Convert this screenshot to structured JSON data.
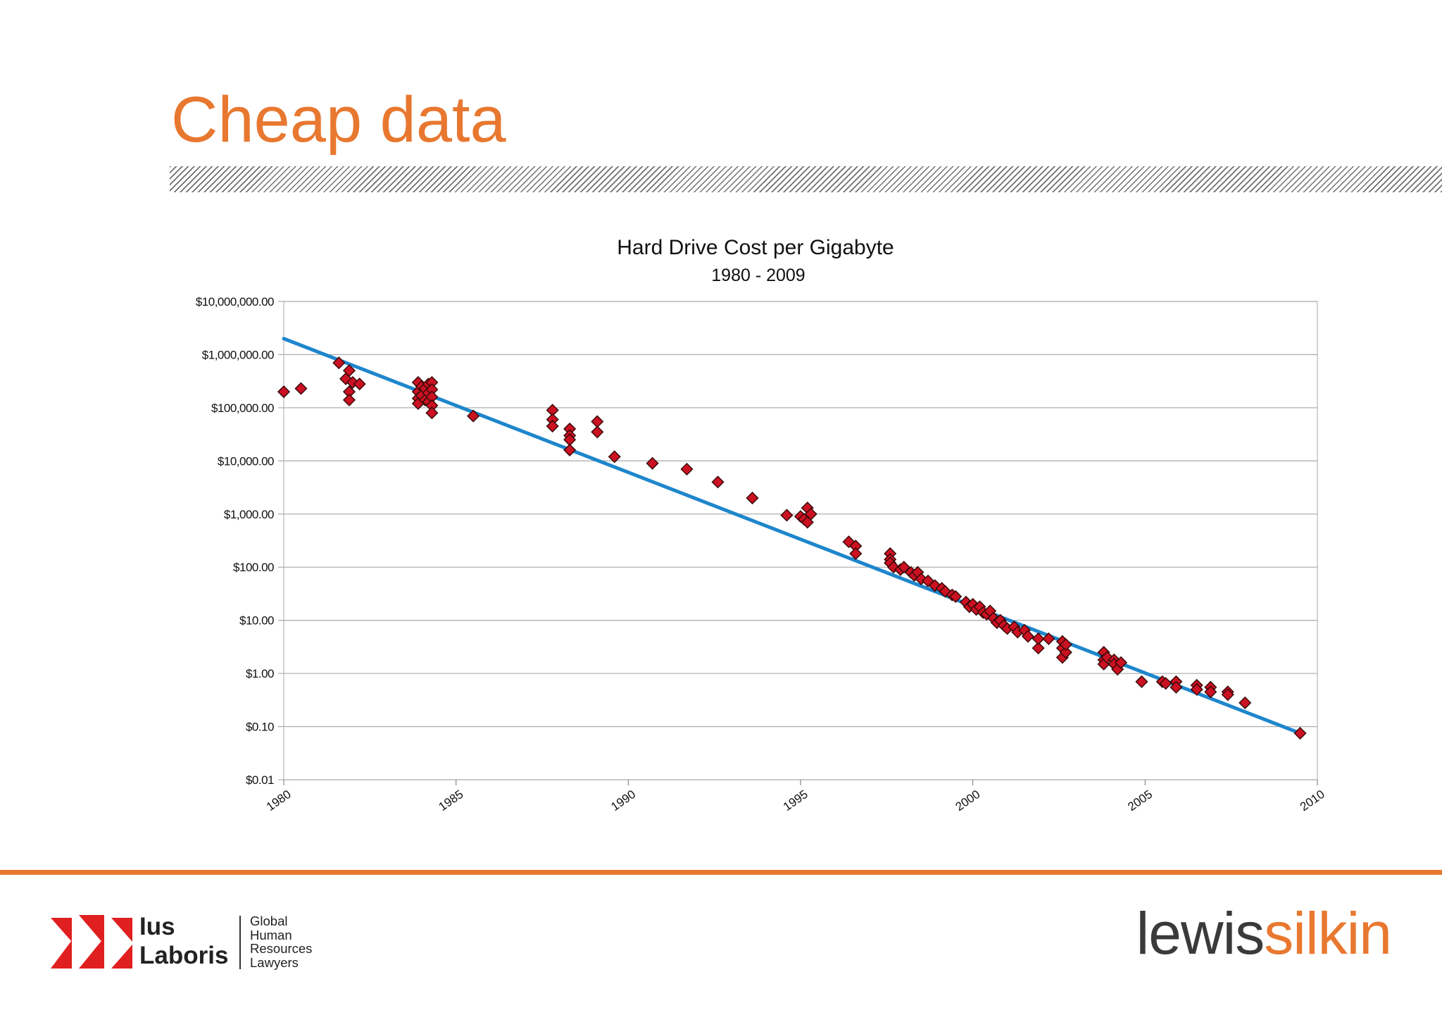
{
  "slide": {
    "title": "Cheap data",
    "colors": {
      "accent": "#e87830",
      "hatch": "#6f6f6f"
    }
  },
  "chart_data": {
    "type": "scatter",
    "title": "Hard Drive Cost per Gigabyte",
    "subtitle": "1980 - 2009",
    "xlabel": "",
    "ylabel": "",
    "x_scale": "linear",
    "y_scale": "log",
    "xlim": [
      1980,
      2010
    ],
    "ylim": [
      0.01,
      10000000
    ],
    "x_ticks": [
      1980,
      1985,
      1990,
      1995,
      2000,
      2005,
      2010
    ],
    "x_tick_labels": [
      "1980",
      "1985",
      "1990",
      "1995",
      "2000",
      "2005",
      "2010"
    ],
    "y_ticks": [
      10000000,
      1000000,
      100000,
      10000,
      1000,
      100,
      10,
      1,
      0.1,
      0.01
    ],
    "y_tick_labels": [
      "$10,000,000.00",
      "$1,000,000.00",
      "$100,000.00",
      "$10,000.00",
      "$1,000.00",
      "$100.00",
      "$10.00",
      "$1.00",
      "$0.10",
      "$0.01"
    ],
    "grid": {
      "horizontal": true,
      "vertical": false
    },
    "legend": "none",
    "series": [
      {
        "marker": "diamond",
        "color": "#cc1122",
        "edge_color": "#3a0a0a",
        "points": [
          [
            1980.0,
            200000
          ],
          [
            1980.5,
            230000
          ],
          [
            1981.6,
            700000
          ],
          [
            1981.8,
            350000
          ],
          [
            1981.9,
            500000
          ],
          [
            1981.9,
            200000
          ],
          [
            1981.9,
            140000
          ],
          [
            1982.0,
            300000
          ],
          [
            1982.2,
            280000
          ],
          [
            1983.9,
            300000
          ],
          [
            1983.9,
            200000
          ],
          [
            1983.9,
            150000
          ],
          [
            1983.9,
            120000
          ],
          [
            1984.0,
            250000
          ],
          [
            1984.0,
            170000
          ],
          [
            1984.1,
            230000
          ],
          [
            1984.1,
            140000
          ],
          [
            1984.2,
            280000
          ],
          [
            1984.2,
            190000
          ],
          [
            1984.2,
            130000
          ],
          [
            1984.3,
            300000
          ],
          [
            1984.3,
            220000
          ],
          [
            1984.3,
            160000
          ],
          [
            1984.3,
            110000
          ],
          [
            1984.3,
            80000
          ],
          [
            1985.5,
            70000
          ],
          [
            1987.8,
            90000
          ],
          [
            1987.8,
            60000
          ],
          [
            1987.8,
            45000
          ],
          [
            1988.3,
            40000
          ],
          [
            1988.3,
            30000
          ],
          [
            1988.3,
            25000
          ],
          [
            1988.3,
            16000
          ],
          [
            1989.1,
            55000
          ],
          [
            1989.1,
            35000
          ],
          [
            1989.6,
            12000
          ],
          [
            1990.7,
            9000
          ],
          [
            1991.7,
            7000
          ],
          [
            1992.6,
            4000
          ],
          [
            1993.6,
            2000
          ],
          [
            1994.6,
            950
          ],
          [
            1995.0,
            900
          ],
          [
            1995.1,
            800
          ],
          [
            1995.2,
            1300
          ],
          [
            1995.2,
            700
          ],
          [
            1995.3,
            1000
          ],
          [
            1996.4,
            300
          ],
          [
            1996.6,
            250
          ],
          [
            1996.6,
            180
          ],
          [
            1997.6,
            180
          ],
          [
            1997.6,
            140
          ],
          [
            1997.6,
            120
          ],
          [
            1997.7,
            100
          ],
          [
            1997.9,
            90
          ],
          [
            1998.0,
            100
          ],
          [
            1998.2,
            80
          ],
          [
            1998.3,
            70
          ],
          [
            1998.4,
            80
          ],
          [
            1998.5,
            60
          ],
          [
            1998.7,
            55
          ],
          [
            1998.9,
            45
          ],
          [
            1999.1,
            40
          ],
          [
            1999.2,
            35
          ],
          [
            1999.4,
            30
          ],
          [
            1999.5,
            28
          ],
          [
            1999.8,
            22
          ],
          [
            1999.9,
            18
          ],
          [
            2000.0,
            20
          ],
          [
            2000.1,
            16
          ],
          [
            2000.2,
            18
          ],
          [
            2000.3,
            14
          ],
          [
            2000.4,
            13
          ],
          [
            2000.5,
            15
          ],
          [
            2000.6,
            11
          ],
          [
            2000.7,
            9
          ],
          [
            2000.8,
            10
          ],
          [
            2000.9,
            8
          ],
          [
            2001.0,
            7
          ],
          [
            2001.2,
            7.5
          ],
          [
            2001.3,
            6
          ],
          [
            2001.5,
            6.5
          ],
          [
            2001.6,
            5
          ],
          [
            2001.9,
            3
          ],
          [
            2001.9,
            4.5
          ],
          [
            2002.2,
            4.5
          ],
          [
            2002.6,
            4
          ],
          [
            2002.6,
            3
          ],
          [
            2002.6,
            2
          ],
          [
            2002.7,
            2.5
          ],
          [
            2002.7,
            3.5
          ],
          [
            2003.8,
            2.5
          ],
          [
            2003.8,
            1.8
          ],
          [
            2003.8,
            1.5
          ],
          [
            2003.9,
            2
          ],
          [
            2004.1,
            1.8
          ],
          [
            2004.1,
            1.5
          ],
          [
            2004.2,
            1.2
          ],
          [
            2004.3,
            1.6
          ],
          [
            2004.9,
            0.7
          ],
          [
            2005.5,
            0.7
          ],
          [
            2005.6,
            0.65
          ],
          [
            2005.9,
            0.7
          ],
          [
            2005.9,
            0.55
          ],
          [
            2006.5,
            0.6
          ],
          [
            2006.5,
            0.5
          ],
          [
            2006.9,
            0.55
          ],
          [
            2006.9,
            0.45
          ],
          [
            2007.4,
            0.45
          ],
          [
            2007.4,
            0.4
          ],
          [
            2007.9,
            0.28
          ],
          [
            2009.5,
            0.075
          ]
        ]
      },
      {
        "name": "",
        "type": "trendline",
        "color": "#1e86cc",
        "points": [
          [
            1980.0,
            2000000
          ],
          [
            2009.5,
            0.075
          ]
        ]
      }
    ]
  },
  "footer": {
    "ius_laboris": {
      "name_line1": "Ius",
      "name_line2": "Laboris",
      "tagline": [
        "Global",
        "Human",
        "Resources",
        "Lawyers"
      ],
      "logo_color": "#e02020"
    },
    "lewis_silkin": {
      "part1": "lewis",
      "part2": "silkin",
      "color_dark": "#3a3a3a",
      "color_accent": "#e87830"
    }
  }
}
